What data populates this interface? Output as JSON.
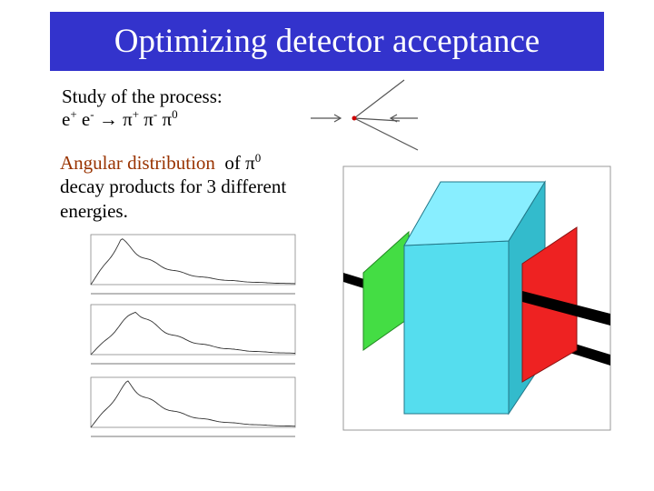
{
  "header": {
    "title": "Optimizing detector acceptance"
  },
  "body": {
    "process_label": "Study of the process:",
    "process": [
      {
        "base": "e",
        "sup": "+"
      },
      {
        "base": "e",
        "sup": "-"
      },
      {
        "base": "→"
      },
      {
        "base": "π",
        "sup": "+"
      },
      {
        "base": "π",
        "sup": "-"
      },
      {
        "base": "π",
        "sup": "0"
      }
    ],
    "description": {
      "highlight": "Angular distribution",
      "line1_rest": "of π",
      "line1_sup": "0",
      "line2": "decay products for 3 different",
      "line3": "energies."
    }
  }
}
